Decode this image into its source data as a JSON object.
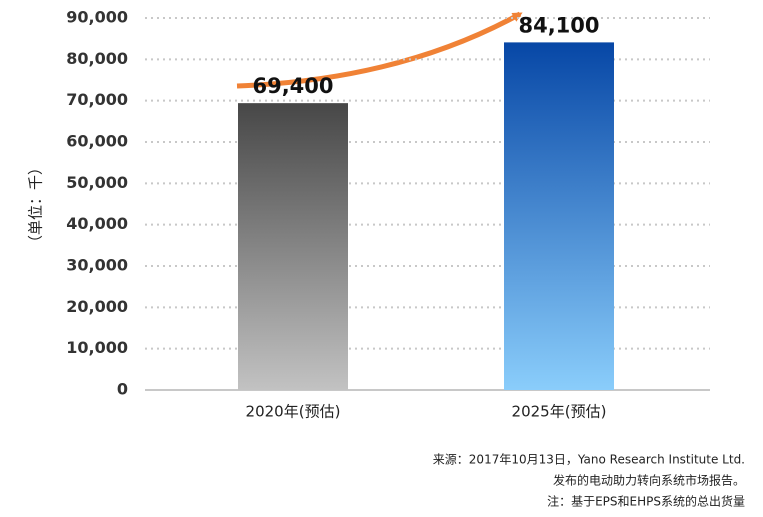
{
  "chart_data": {
    "type": "bar",
    "ylabel": "（单位：千）",
    "categories": [
      "2020年(预估)",
      "2025年(预估)"
    ],
    "values": [
      69400,
      84100
    ],
    "value_labels": [
      "69,400",
      "84,100"
    ],
    "colors": [
      [
        "#474747",
        "#c2c2c2"
      ],
      [
        "#0747a6",
        "#8acdfb"
      ]
    ],
    "ylim": [
      0,
      90000
    ],
    "yticks": [
      0,
      {
        "value": 10000,
        "label": "10,000"
      },
      {
        "value": 20000,
        "label": "20,000"
      },
      {
        "value": 30000,
        "label": "30,000"
      },
      {
        "value": 40000,
        "label": "40,000"
      },
      {
        "value": 50000,
        "label": "50,000"
      },
      {
        "value": 60000,
        "label": "60,000"
      },
      {
        "value": 70000,
        "label": "70,000"
      },
      {
        "value": 80000,
        "label": "80,000"
      },
      {
        "value": 90000,
        "label": "90,000"
      }
    ],
    "grid": true,
    "notes": [
      "来源：2017年10月13日，Yano Research Institute Ltd.",
      "发布的电动助力转向系统市场报告。",
      "注：基于EPS和EHPS系统的总出货量"
    ]
  }
}
